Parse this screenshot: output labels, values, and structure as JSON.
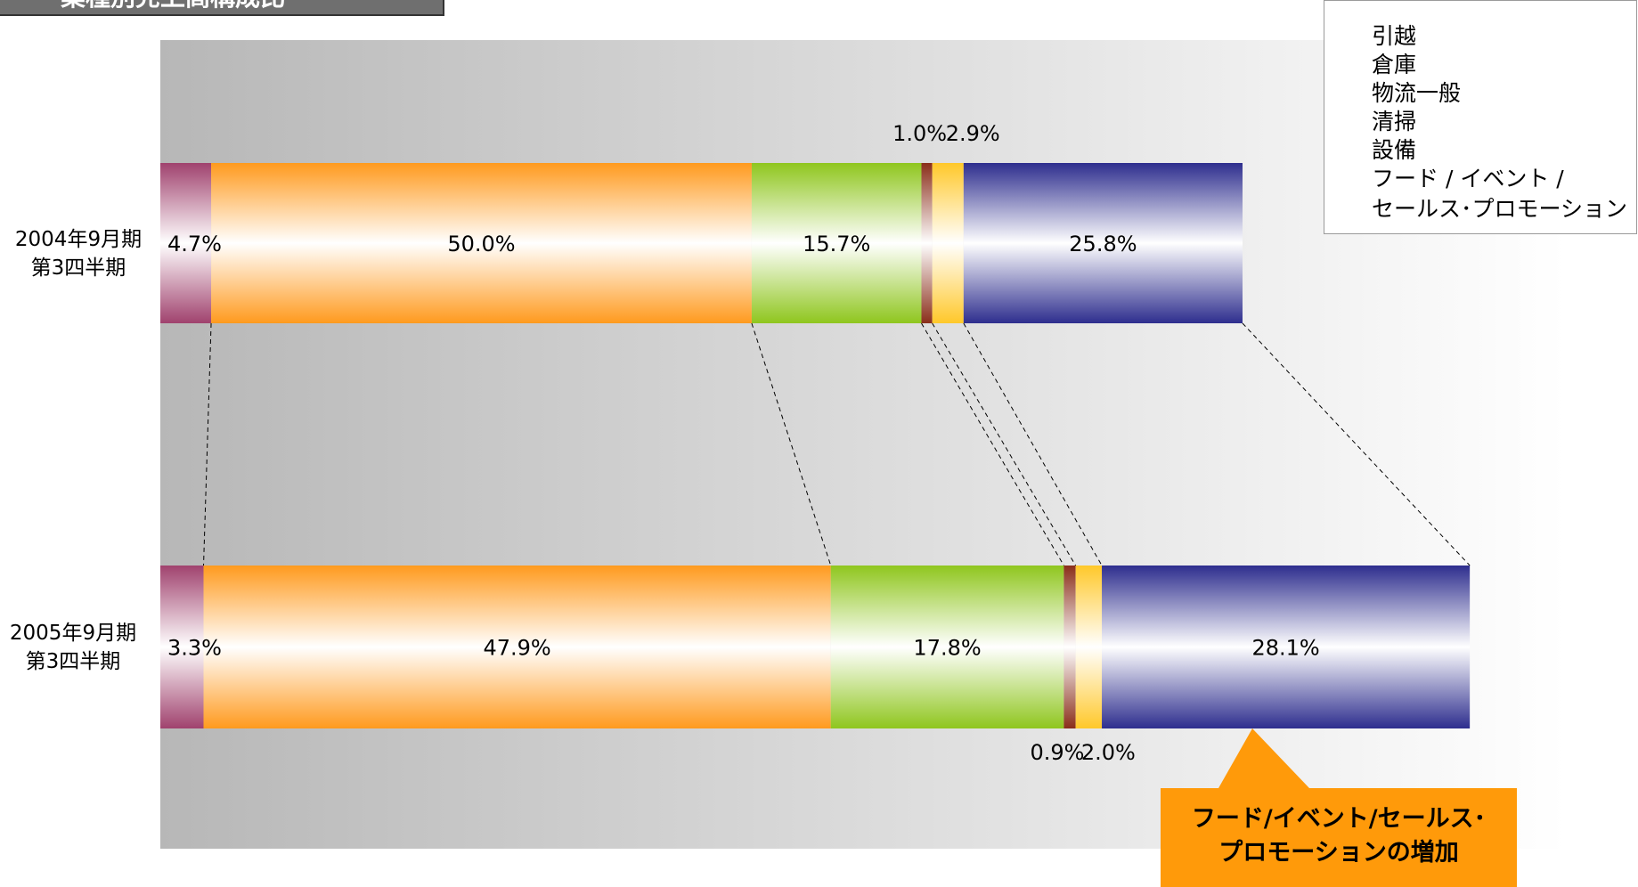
{
  "title": "業種別売上高構成比",
  "legend": [
    "引越",
    "倉庫",
    "物流一般",
    "清掃",
    "設備",
    "フード / イベント /",
    "セールス･プロモーション"
  ],
  "callout": {
    "line1": "フード/イベント/セールス･",
    "line2": "プロモーションの増加"
  },
  "colors": {
    "引越": "#a0426e",
    "倉庫": "#ff9a1e",
    "物流一般": "#8fc61e",
    "清掃": "#8a2e1a",
    "設備": "#ffc82a",
    "フード/イベント/セールス･プロモーション": "#2e2e8e",
    "callout": "#ff9a0a"
  },
  "chart_data": {
    "type": "bar",
    "orientation": "horizontal",
    "stacked": true,
    "categories": [
      "2004年9月期\n第3四半期",
      "2005年9月期\n第3四半期"
    ],
    "category_lines": [
      [
        "2004年9月期",
        "第3四半期"
      ],
      [
        "2005年9月期",
        "第3四半期"
      ]
    ],
    "series": [
      {
        "name": "引越",
        "values": [
          4.7,
          3.3
        ],
        "labels": [
          "4.7%",
          "3.3%"
        ]
      },
      {
        "name": "倉庫",
        "values": [
          50.0,
          47.9
        ],
        "labels": [
          "50.0%",
          "47.9%"
        ]
      },
      {
        "name": "物流一般",
        "values": [
          15.7,
          17.8
        ],
        "labels": [
          "15.7%",
          "17.8%"
        ]
      },
      {
        "name": "清掃",
        "values": [
          1.0,
          0.9
        ],
        "labels": [
          "1.0%",
          "0.9%"
        ]
      },
      {
        "name": "設備",
        "values": [
          2.9,
          2.0
        ],
        "labels": [
          "2.9%",
          "2.0%"
        ]
      },
      {
        "name": "フード/イベント/セールス･プロモーション",
        "values": [
          25.8,
          28.1
        ],
        "labels": [
          "25.8%",
          "28.1%"
        ]
      }
    ],
    "totals_relative": [
      1.0,
      1.21
    ],
    "legend_position": "top-right",
    "grid": false
  }
}
